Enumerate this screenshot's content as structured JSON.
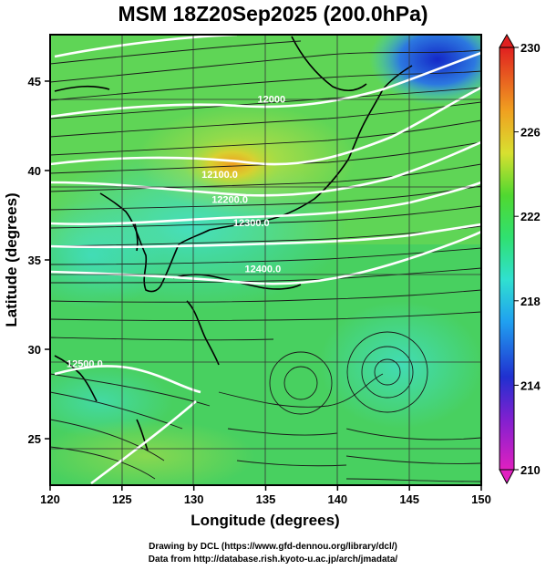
{
  "title": "MSM 18Z20Sep2025 (200.0hPa)",
  "footer": {
    "line1": "Drawing by DCL (https://www.gfd-dennou.org/library/dcl/)",
    "line2": "Data from http://database.rish.kyoto-u.ac.jp/arch/jmadata/"
  },
  "map": {
    "xlabel": "Longitude (degrees)",
    "ylabel": "Latitude  (degrees)",
    "lon_range": [
      120,
      150
    ],
    "lat_range": [
      22.4,
      47.6
    ],
    "lon_ticks": [
      "120",
      "125",
      "130",
      "135",
      "140",
      "145",
      "150"
    ],
    "lat_ticks": [
      "25",
      "30",
      "35",
      "40",
      "45"
    ],
    "contour_labels": [
      {
        "text": "12000",
        "lon": 135.4,
        "lat": 43.8
      },
      {
        "text": "12100.0",
        "lon": 131.8,
        "lat": 39.6
      },
      {
        "text": "12200.0",
        "lon": 132.5,
        "lat": 38.2
      },
      {
        "text": "12300.0",
        "lon": 134.0,
        "lat": 36.9
      },
      {
        "text": "12400.0",
        "lon": 134.8,
        "lat": 34.3
      },
      {
        "text": "12500.0",
        "lon": 122.4,
        "lat": 29.0
      }
    ],
    "colors": {
      "warm_core": "#f0a020",
      "yellow": "#d0e040",
      "green": "#40d060",
      "cyan": "#40e0c8",
      "blue_low": "#2040d0"
    }
  },
  "colorbar": {
    "min": 210,
    "max": 230,
    "labels": [
      "230",
      "226",
      "222",
      "218",
      "214",
      "210"
    ]
  }
}
